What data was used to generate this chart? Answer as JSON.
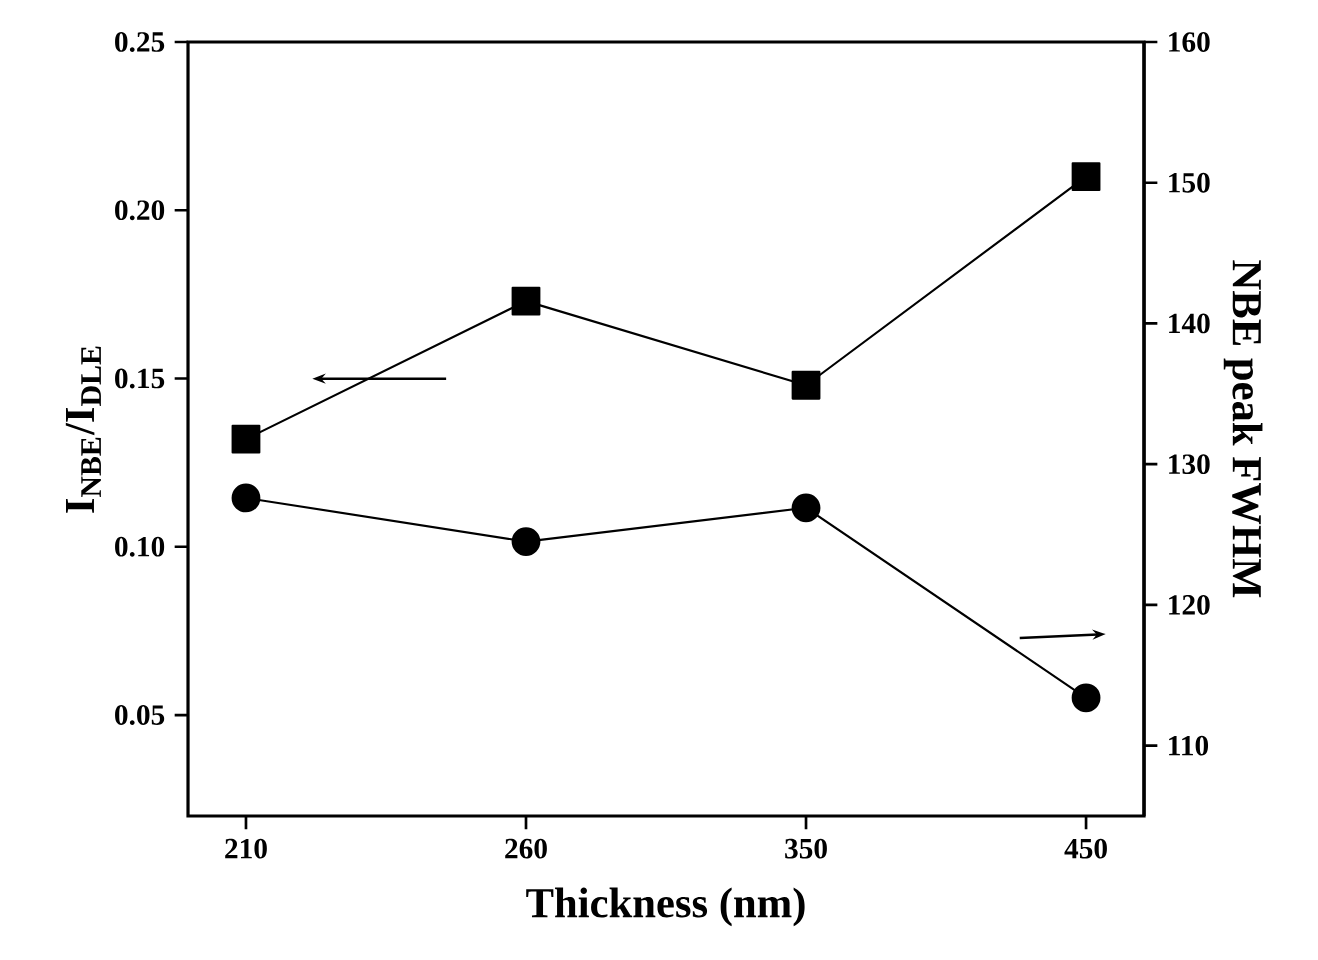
{
  "chart_data": {
    "type": "line",
    "xlabel": "Thickness (nm)",
    "ylabel": "I$_{NBE}$/I$_{DLE}$",
    "y2label": "NBE peak FWHM",
    "categories": [
      "210",
      "260",
      "350",
      "450"
    ],
    "series": [
      {
        "color": "#000000",
        "marker": "square",
        "values": [
          0.132,
          0.173,
          0.148,
          0.21
        ]
      },
      {
        "color": "#000000",
        "marker": "circle",
        "axis": "y2",
        "values": [
          127.6,
          124.5,
          126.9,
          113.4
        ]
      }
    ],
    "ylim": [
      0.02,
      0.25
    ],
    "yticks": [
      0.05,
      {
        "value": 0.1,
        "label": "0.10"
      },
      0.15,
      {
        "value": 0.2,
        "label": "0.20"
      },
      0.25
    ],
    "y2lim": [
      105,
      160
    ],
    "y2ticks": [
      110,
      120,
      130,
      140,
      150,
      160
    ],
    "line_style": "solid"
  }
}
